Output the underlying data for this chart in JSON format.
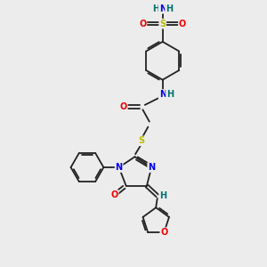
{
  "bg_color": "#ececec",
  "bond_color": "#222222",
  "bond_width": 1.3,
  "dbo": 0.06,
  "colors": {
    "N": "#0000ee",
    "O": "#ee0000",
    "S": "#bbbb00",
    "H": "#007070",
    "C": "#222222"
  },
  "fs": 7.0
}
